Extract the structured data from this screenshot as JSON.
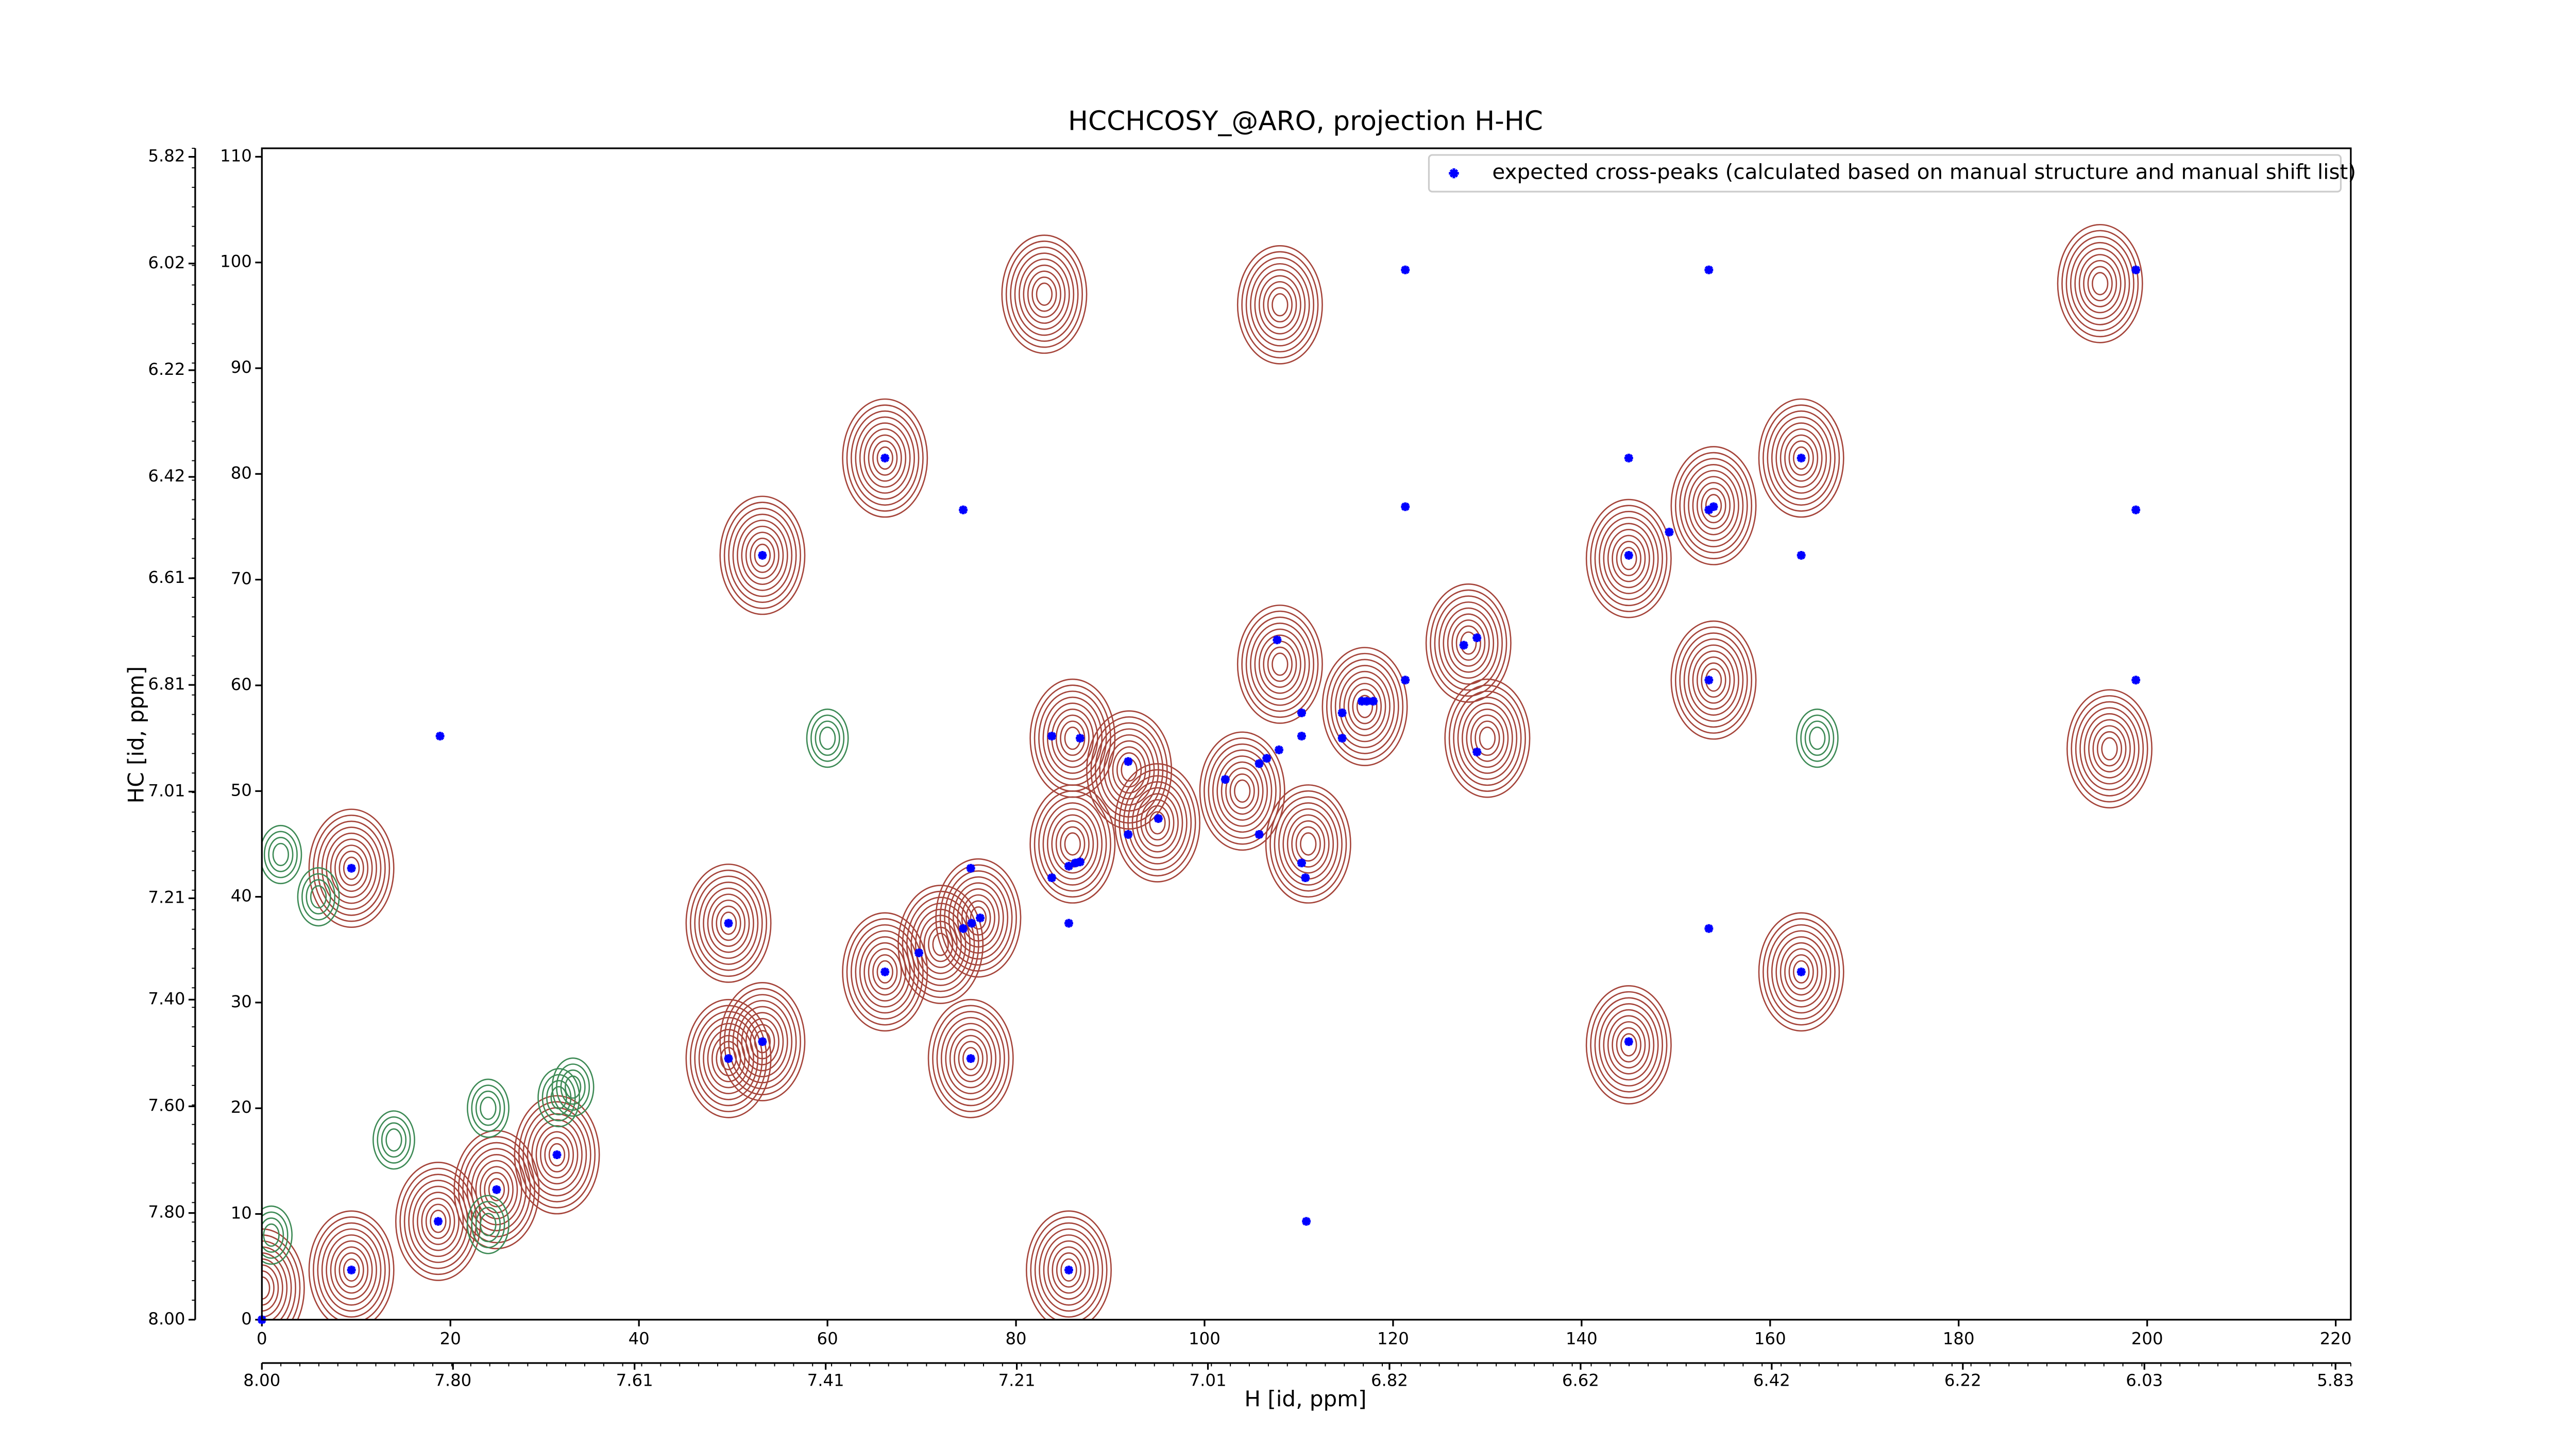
{
  "chart_data": {
    "type": "scatter",
    "title": "HCCHCOSY_@ARO, projection H-HC",
    "xlabel": "H [id, ppm]",
    "ylabel": "HC [id, ppm]",
    "xlim": [
      0,
      221.6
    ],
    "ylim": [
      0,
      110.8
    ],
    "xticks": [
      0,
      20,
      40,
      60,
      80,
      100,
      120,
      140,
      160,
      180,
      200,
      220
    ],
    "yticks": [
      0,
      10,
      20,
      30,
      40,
      50,
      60,
      70,
      80,
      90,
      100,
      110
    ],
    "x2lim": [
      8.0,
      5.814
    ],
    "x2ticks": [
      {
        "value": 8.0,
        "label": "8.00"
      },
      {
        "value": 7.8,
        "label": "7.80"
      },
      {
        "value": 7.61,
        "label": "7.61"
      },
      {
        "value": 7.41,
        "label": "7.41"
      },
      {
        "value": 7.21,
        "label": "7.21"
      },
      {
        "value": 7.01,
        "label": "7.01"
      },
      {
        "value": 6.82,
        "label": "6.82"
      },
      {
        "value": 6.62,
        "label": "6.62"
      },
      {
        "value": 6.42,
        "label": "6.42"
      },
      {
        "value": 6.22,
        "label": "6.22"
      },
      {
        "value": 6.03,
        "label": "6.03"
      },
      {
        "value": 5.83,
        "label": "5.83"
      }
    ],
    "y2lim": [
      8.0,
      5.804
    ],
    "y2ticks": [
      {
        "value": 8.0,
        "label": "8.00"
      },
      {
        "value": 7.8,
        "label": "7.80"
      },
      {
        "value": 7.6,
        "label": "7.60"
      },
      {
        "value": 7.4,
        "label": "7.40"
      },
      {
        "value": 7.21,
        "label": "7.21"
      },
      {
        "value": 7.01,
        "label": "7.01"
      },
      {
        "value": 6.81,
        "label": "6.81"
      },
      {
        "value": 6.61,
        "label": "6.61"
      },
      {
        "value": 6.42,
        "label": "6.42"
      },
      {
        "value": 6.22,
        "label": "6.22"
      },
      {
        "value": 6.02,
        "label": "6.02"
      },
      {
        "value": 5.82,
        "label": "5.82"
      }
    ],
    "legend": "upper right",
    "contours": [
      {
        "color": "#a5443a",
        "x": [
          9.5,
          18.7,
          24.9,
          31.3,
          9.5,
          49.5,
          49.5,
          53.1,
          53.1,
          66.1,
          66.1,
          72,
          76,
          75.2,
          83,
          85.6,
          86,
          86,
          92,
          95,
          104,
          108,
          108,
          111,
          117,
          128,
          130,
          145,
          145,
          154,
          154,
          163.3,
          163.3,
          195,
          196,
          0
        ],
        "y": [
          4.7,
          9.3,
          12.3,
          15.6,
          42.7,
          37.5,
          24.7,
          26.3,
          72.3,
          81.5,
          32.9,
          35.5,
          38,
          24.7,
          97,
          4.7,
          55,
          45,
          52,
          47,
          50,
          62,
          96,
          45,
          58,
          64,
          55,
          72,
          26,
          77,
          60.5,
          81.5,
          32.9,
          98,
          54,
          3
        ]
      },
      {
        "color": "#3d8a55",
        "x": [
          31.5,
          24,
          24,
          6,
          2,
          60,
          33,
          14,
          165,
          1
        ],
        "y": [
          21,
          9,
          20,
          40,
          44,
          55,
          22,
          17,
          55,
          8
        ]
      }
    ],
    "series": [
      {
        "name": "expected cross-peaks (calculated based on manual structure and manual shift list)",
        "color": "#0000ff",
        "x": [
          0,
          9.5,
          18.7,
          24.9,
          31.3,
          9.5,
          18.9,
          49.5,
          49.5,
          53.1,
          53.1,
          66.1,
          66.1,
          69.7,
          74.4,
          74.4,
          75.3,
          76.2,
          75.2,
          75.2,
          83.8,
          86.8,
          85.6,
          83.8,
          85.6,
          86.3,
          86.8,
          85.6,
          91.9,
          91.9,
          95.1,
          102.2,
          105.8,
          106.6,
          107.9,
          107.7,
          105.8,
          110.3,
          110.3,
          110.3,
          110.7,
          110.8,
          114.6,
          114.6,
          116.7,
          117.2,
          117.9,
          121.3,
          121.3,
          121.3,
          127.5,
          128.9,
          128.9,
          145.0,
          145.0,
          149.3,
          145.0,
          153.5,
          153.5,
          154.0,
          153.5,
          153.5,
          163.3,
          163.3,
          163.3,
          198.8,
          198.8,
          198.8
        ],
        "values": [
          0,
          4.7,
          9.3,
          12.3,
          15.6,
          42.7,
          55.2,
          37.5,
          24.7,
          26.3,
          72.3,
          81.5,
          32.9,
          34.7,
          76.6,
          37.0,
          37.5,
          38.0,
          42.7,
          24.7,
          55.2,
          55.0,
          4.7,
          41.8,
          42.9,
          43.2,
          43.3,
          37.5,
          52.8,
          45.9,
          47.4,
          51.1,
          52.6,
          53.1,
          53.9,
          64.3,
          45.9,
          55.2,
          57.4,
          43.2,
          41.8,
          9.3,
          55.0,
          57.4,
          58.5,
          58.5,
          58.5,
          99.3,
          76.9,
          60.5,
          63.8,
          64.5,
          53.7,
          81.5,
          72.3,
          74.5,
          26.3,
          99.3,
          76.6,
          76.9,
          60.5,
          37.0,
          81.5,
          72.3,
          32.9,
          99.3,
          76.6,
          60.5
        ]
      }
    ]
  }
}
